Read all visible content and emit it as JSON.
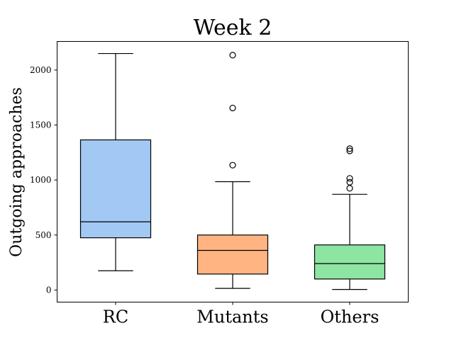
{
  "chart_data": {
    "type": "box",
    "title": "Week 2",
    "xlabel": "",
    "ylabel": "Outgoing approaches",
    "ylim": [
      -110,
      2260
    ],
    "yticks": [
      0,
      500,
      1000,
      1500,
      2000
    ],
    "grid": false,
    "categories": [
      "RC",
      "Mutants",
      "Others"
    ],
    "boxes": [
      {
        "category": "RC",
        "color": "#a1c9f4",
        "whisker_low": 175,
        "q1": 475,
        "median": 620,
        "q3": 1365,
        "whisker_high": 2150,
        "outliers": []
      },
      {
        "category": "Mutants",
        "color": "#ffb482",
        "whisker_low": 15,
        "q1": 145,
        "median": 360,
        "q3": 500,
        "whisker_high": 985,
        "outliers": [
          1135,
          1655,
          2135
        ]
      },
      {
        "category": "Others",
        "color": "#8de5a1",
        "whisker_low": 5,
        "q1": 100,
        "median": 240,
        "q3": 410,
        "whisker_high": 870,
        "outliers": [
          925,
          980,
          1015,
          1265,
          1285
        ]
      }
    ]
  }
}
